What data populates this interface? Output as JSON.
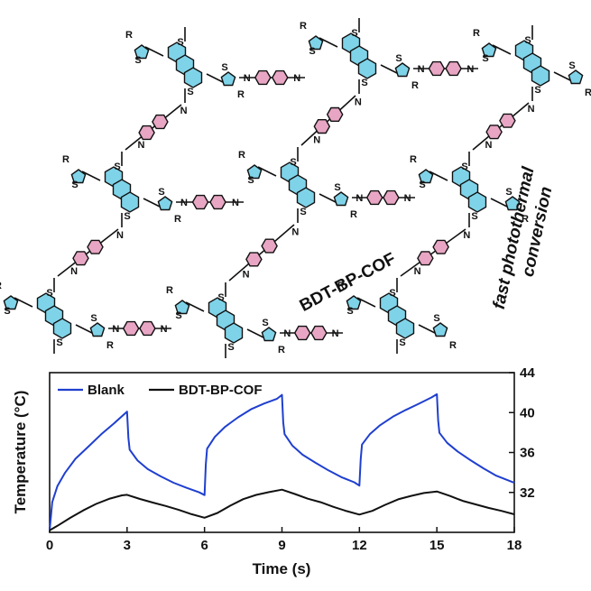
{
  "structure": {
    "name_label": "BDT-BP-COF",
    "side_label_line1": "fast photothermal",
    "side_label_line2": "conversion",
    "atoms": {
      "sulfur": "S",
      "nitrogen": "N",
      "substituent": "R"
    },
    "colors": {
      "bdt_core": "#7fd3e8",
      "phenyl": "#e8a6c4",
      "bond": "#111111"
    }
  },
  "chart_data": {
    "type": "line",
    "xlabel": "Time (s)",
    "ylabel": "Temperature (°C)",
    "xlim": [
      0,
      18
    ],
    "ylim": [
      28,
      44
    ],
    "xticks": [
      0,
      3,
      6,
      9,
      12,
      15,
      18
    ],
    "yticks": [
      32,
      36,
      40,
      44
    ],
    "y_axis_side": "right",
    "legend_position": "top-left",
    "grid": false,
    "series": [
      {
        "name": "Blank",
        "color": "#1f3fcf",
        "x": [
          0,
          0.1,
          0.3,
          0.6,
          1.0,
          1.5,
          2.0,
          2.5,
          3.0,
          3.05,
          3.1,
          3.4,
          3.8,
          4.3,
          4.8,
          5.3,
          5.8,
          6.0,
          6.05,
          6.1,
          6.4,
          6.8,
          7.3,
          7.8,
          8.3,
          8.8,
          9.0,
          9.05,
          9.1,
          9.4,
          9.8,
          10.3,
          10.8,
          11.3,
          11.8,
          12.0,
          12.05,
          12.1,
          12.4,
          12.8,
          13.3,
          13.8,
          14.3,
          14.8,
          15.0,
          15.05,
          15.1,
          15.4,
          15.8,
          16.3,
          16.8,
          17.3,
          18.0
        ],
        "y": [
          28.2,
          31.0,
          32.6,
          34.0,
          35.4,
          36.6,
          37.8,
          38.9,
          40.1,
          37.5,
          36.3,
          35.2,
          34.3,
          33.6,
          33.0,
          32.5,
          32.0,
          31.7,
          34.8,
          36.4,
          37.6,
          38.6,
          39.5,
          40.3,
          40.9,
          41.4,
          41.8,
          39.0,
          37.8,
          36.7,
          35.8,
          35.0,
          34.2,
          33.5,
          33.0,
          32.7,
          35.4,
          36.8,
          37.8,
          38.7,
          39.6,
          40.3,
          40.9,
          41.5,
          41.8,
          39.2,
          38.0,
          37.0,
          36.1,
          35.2,
          34.4,
          33.7,
          33.0
        ]
      },
      {
        "name": "BDT-BP-COF",
        "color": "#111111",
        "x": [
          0,
          0.3,
          0.8,
          1.3,
          1.8,
          2.3,
          2.8,
          3.0,
          3.5,
          4.0,
          4.5,
          5.0,
          5.5,
          6.0,
          6.5,
          7.0,
          7.5,
          8.0,
          8.5,
          9.0,
          9.5,
          10.0,
          10.5,
          11.0,
          11.5,
          12.0,
          12.5,
          13.0,
          13.5,
          14.0,
          14.5,
          15.0,
          15.5,
          16.0,
          16.5,
          17.0,
          17.5,
          18.0
        ],
        "y": [
          28.2,
          28.7,
          29.5,
          30.2,
          30.8,
          31.3,
          31.7,
          31.8,
          31.4,
          31.0,
          30.6,
          30.2,
          29.8,
          29.5,
          30.0,
          30.7,
          31.3,
          31.7,
          32.0,
          32.3,
          31.9,
          31.4,
          31.0,
          30.5,
          30.1,
          29.8,
          30.2,
          30.8,
          31.3,
          31.6,
          31.9,
          32.1,
          31.7,
          31.2,
          30.8,
          30.4,
          30.1,
          29.8
        ]
      }
    ]
  }
}
